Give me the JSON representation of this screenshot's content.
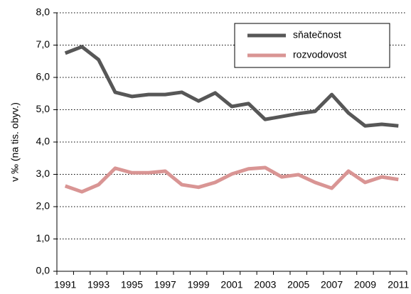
{
  "chart_data": {
    "type": "line",
    "y_label": "v ‰ (na  tis. obyv.)",
    "categories": [
      "1991",
      null,
      "1993",
      null,
      "1995",
      null,
      "1997",
      null,
      "1999",
      null,
      "2001",
      null,
      "2003",
      null,
      "2005",
      null,
      "2007",
      null,
      "2009",
      null,
      "2011"
    ],
    "series": [
      {
        "name": "sňatečnost",
        "color": "#575757",
        "values": [
          6.75,
          6.95,
          6.55,
          5.54,
          5.41,
          5.47,
          5.47,
          5.54,
          5.27,
          5.52,
          5.1,
          5.19,
          4.7,
          4.79,
          4.88,
          4.95,
          5.47,
          4.9,
          4.5,
          4.55,
          4.5
        ]
      },
      {
        "name": "rozvodovost",
        "color": "#d99594",
        "values": [
          2.64,
          2.46,
          2.68,
          3.19,
          3.05,
          3.05,
          3.1,
          2.68,
          2.6,
          2.75,
          3.01,
          3.17,
          3.21,
          2.92,
          2.99,
          2.75,
          2.57,
          3.1,
          2.75,
          2.92,
          2.84
        ]
      }
    ],
    "ylim": [
      0,
      8
    ],
    "yticks": [
      {
        "value": 0,
        "label": "0,0"
      },
      {
        "value": 1,
        "label": "1,0"
      },
      {
        "value": 2,
        "label": "2,0"
      },
      {
        "value": 3,
        "label": "3,0"
      },
      {
        "value": 4,
        "label": "4,0"
      },
      {
        "value": 5,
        "label": "5,0"
      },
      {
        "value": 6,
        "label": "6,0"
      },
      {
        "value": 7,
        "label": "7,0"
      },
      {
        "value": 8,
        "label": "8,0"
      }
    ],
    "grid": true,
    "legend": "upper right"
  }
}
